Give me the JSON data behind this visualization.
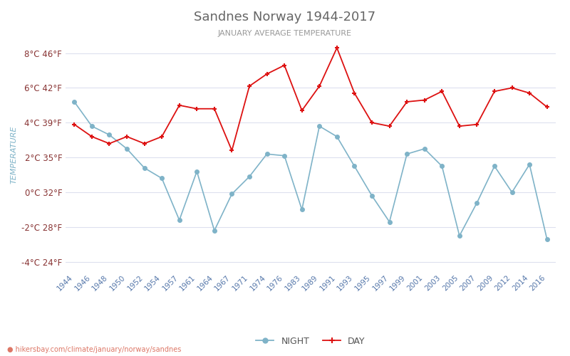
{
  "title": "Sandnes Norway 1944-2017",
  "subtitle": "JANUARY AVERAGE TEMPERATURE",
  "ylabel": "TEMPERATURE",
  "url_text": "hikersbay.com/climate/january/norway/sandnes",
  "xtick_labels": [
    "1944",
    "1946",
    "1948",
    "1950",
    "1952",
    "1954",
    "1957",
    "1961",
    "1964",
    "1967",
    "1971",
    "1974",
    "1976",
    "1983",
    "1989",
    "1991",
    "1993",
    "1995",
    "1997",
    "1999",
    "2001",
    "2003",
    "2005",
    "2007",
    "2009",
    "2012",
    "2014",
    "2016"
  ],
  "night_vals": [
    5.2,
    3.8,
    3.3,
    2.5,
    1.4,
    0.8,
    -1.6,
    1.2,
    -2.2,
    -0.1,
    0.9,
    2.2,
    2.1,
    -1.0,
    3.8,
    3.2,
    1.5,
    -0.2,
    -1.7,
    2.2,
    2.5,
    1.5,
    -2.5,
    -0.6,
    1.5,
    -0.0,
    1.6,
    -2.7
  ],
  "day_vals": [
    3.9,
    3.2,
    2.8,
    3.2,
    2.8,
    3.2,
    5.0,
    4.8,
    4.8,
    2.4,
    6.1,
    6.8,
    7.3,
    4.7,
    6.1,
    8.3,
    5.7,
    4.0,
    3.8,
    5.2,
    5.3,
    5.8,
    3.8,
    3.9,
    5.8,
    6.0,
    5.7,
    4.9
  ],
  "ylim": [
    -4.5,
    8.8
  ],
  "yticks_c": [
    -4,
    -2,
    0,
    2,
    4,
    6,
    8
  ],
  "yticks_f": [
    24,
    28,
    32,
    35,
    39,
    42,
    46
  ],
  "night_color": "#7fb3c8",
  "day_color": "#dd1111",
  "title_color": "#666666",
  "subtitle_color": "#999999",
  "label_color": "#883333",
  "ylabel_color": "#7fb3c8",
  "grid_color": "#dde0ee",
  "bg_color": "#ffffff",
  "url_color": "#dd7766",
  "url_icon_color": "#e87060"
}
